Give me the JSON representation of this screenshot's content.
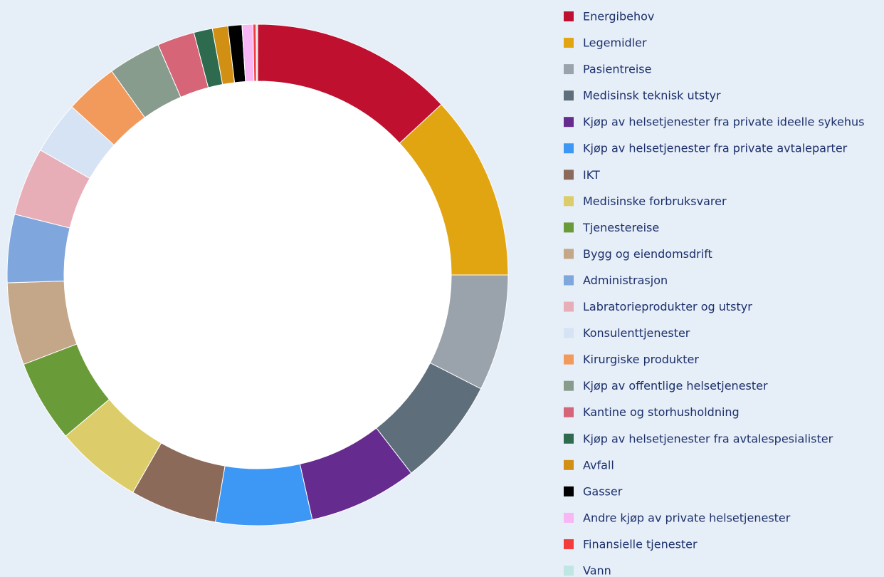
{
  "chart_data": {
    "type": "donut",
    "categories": [
      "Energibehov",
      "Legemidler",
      "Pasientreise",
      "Medisinsk teknisk utstyr",
      "Kjøp av helsetjenester fra private ideelle sykehus",
      "Kjøp av helsetjenester fra private avtaleparter",
      "IKT",
      "Medisinske forbruksvarer",
      "Tjenestereise",
      "Bygg og eiendomsdrift",
      "Administrasjon",
      "Labratorieprodukter og utstyr",
      "Konsulenttjenester",
      "Kirurgiske produkter",
      "Kjøp av offentlige helsetjenester",
      "Kantine og storhusholdning",
      "Kjøp av helsetjenester fra avtalespesialister",
      "Avfall",
      "Gasser",
      "Andre kjøp av private helsetjenester",
      "Finansielle tjenester",
      "Vann"
    ],
    "values": [
      13.1,
      11.9,
      7.5,
      7.0,
      7.0,
      6.2,
      5.6,
      5.6,
      5.3,
      5.3,
      4.4,
      4.4,
      3.4,
      3.4,
      3.4,
      2.4,
      1.2,
      1.0,
      0.9,
      0.7,
      0.2,
      0.1
    ],
    "colors": [
      "#c0102f",
      "#e2a512",
      "#9aa2ab",
      "#5e6e7b",
      "#652b8e",
      "#3d97f5",
      "#8c6a5a",
      "#dccd6a",
      "#6a9b39",
      "#c4a688",
      "#7fa6dd",
      "#e8aeb8",
      "#d5e3f4",
      "#f29a5b",
      "#889c8e",
      "#d56577",
      "#2e6a4e",
      "#d18f14",
      "#000000",
      "#f8b7f4",
      "#f33c3c",
      "#bfe6e2"
    ],
    "legend": "right"
  }
}
